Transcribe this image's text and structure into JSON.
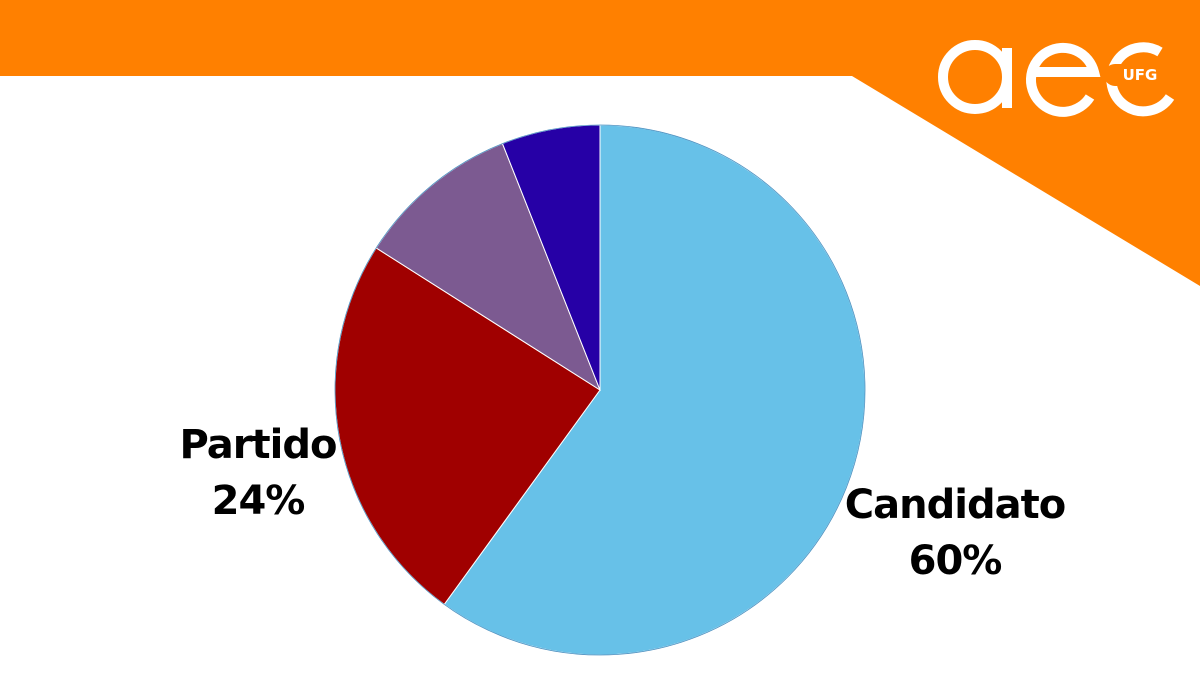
{
  "logo": {
    "name": "aeo-ufg-logo",
    "text": "UFG"
  },
  "colors": {
    "banner": "#ff8000",
    "logo": "#ffffff"
  },
  "chart_data": {
    "type": "pie",
    "title": "",
    "start_angle_deg": 0,
    "direction": "clockwise",
    "slices": [
      {
        "label": "Candidato",
        "percent_label": "60%",
        "value": 60,
        "color": "#67c1e8",
        "show_label": true
      },
      {
        "label": "Partido",
        "percent_label": "24%",
        "value": 24,
        "color": "#a00000",
        "show_label": true
      },
      {
        "label": "",
        "percent_label": "",
        "value": 10,
        "color": "#7c5a91",
        "show_label": false
      },
      {
        "label": "",
        "percent_label": "",
        "value": 6,
        "color": "#2600a6",
        "show_label": false
      }
    ]
  }
}
